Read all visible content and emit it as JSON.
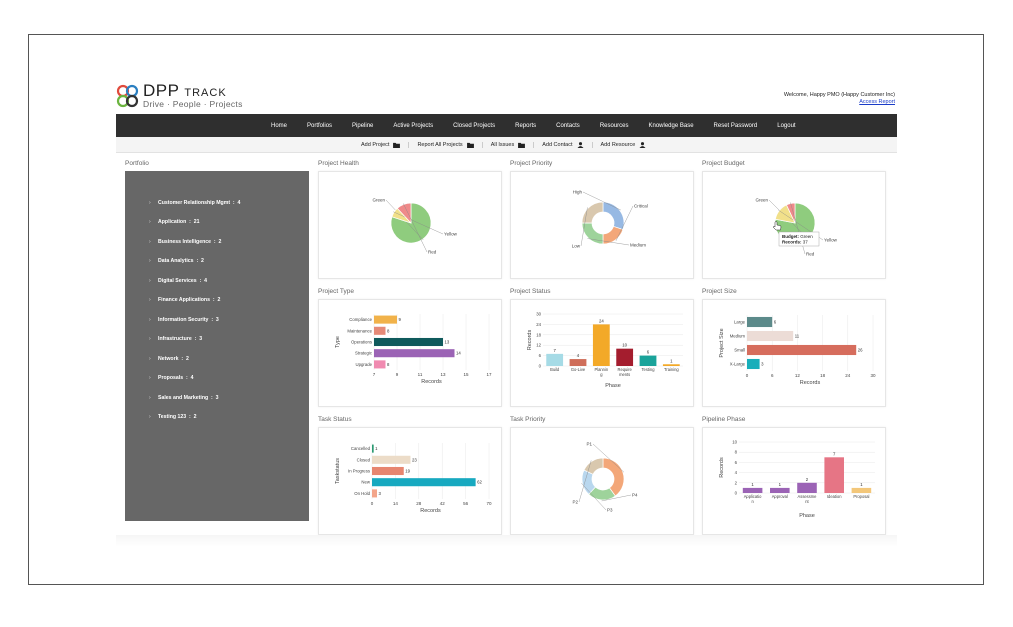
{
  "header": {
    "logo_main": "DPP",
    "logo_sub": "TRACK",
    "tagline": "Drive · People · Projects",
    "welcome": "Welcome, Happy PMO (Happy Customer Inc)",
    "access_report": "Access Report"
  },
  "nav": [
    "Home",
    "Portfolios",
    "Pipeline",
    "Active Projects",
    "Closed Projects",
    "Reports",
    "Contacts",
    "Resources",
    "Knowledge Base",
    "Reset Password",
    "Logout"
  ],
  "actions": [
    {
      "label": "Add Project",
      "icon": "folder-icon"
    },
    {
      "label": "Report All Projects",
      "icon": "folder-icon"
    },
    {
      "label": "All Issues",
      "icon": "folder-icon"
    },
    {
      "label": "Add Contact",
      "icon": "person-icon"
    },
    {
      "label": "Add Resource",
      "icon": "person-icon"
    }
  ],
  "portfolio": {
    "title": "Portfolio",
    "items": [
      {
        "label": "Customer Relationship Mgmt",
        "count": "4"
      },
      {
        "label": "Application",
        "count": "21"
      },
      {
        "label": "Business Intelligence",
        "count": "2"
      },
      {
        "label": "Data Analytics",
        "count": "2"
      },
      {
        "label": "Digital Services",
        "count": "4"
      },
      {
        "label": "Finance Applications",
        "count": "2"
      },
      {
        "label": "Information Security",
        "count": "3"
      },
      {
        "label": "Infrastructure",
        "count": "3"
      },
      {
        "label": "Network",
        "count": "2"
      },
      {
        "label": "Proposals",
        "count": "4"
      },
      {
        "label": "Sales and Marketing",
        "count": "3"
      },
      {
        "label": "Testing 123",
        "count": "2"
      }
    ]
  },
  "panels": {
    "project_health": "Project Health",
    "project_priority": "Project Priority",
    "project_budget": "Project Budget",
    "project_type": "Project Type",
    "project_status": "Project Status",
    "project_size": "Project Size",
    "task_status": "Task Status",
    "task_priority": "Task Priority",
    "pipeline_phase": "Pipeline Phase"
  },
  "colors": {
    "green": "#8fcc7e",
    "yellow": "#f1e08a",
    "red": "#ef8a8a",
    "blue": "#97b9e3",
    "orange": "#f3a779",
    "beige": "#d9c8ae",
    "teal_green": "#9ed39b",
    "nav_bg": "#2f2f2f",
    "sidebar_bg": "#676767"
  },
  "chart_data": [
    {
      "id": "project_health",
      "type": "pie",
      "labels": [
        "Green",
        "Yellow",
        "Red"
      ],
      "values": [
        80,
        8,
        12
      ],
      "colors": [
        "#8fcc7e",
        "#f1e08a",
        "#ef8a8a"
      ]
    },
    {
      "id": "project_priority",
      "type": "pie",
      "labels": [
        "High",
        "Critical",
        "Medium",
        "Low"
      ],
      "values": [
        30,
        20,
        25,
        25
      ],
      "colors": [
        "#97b9e3",
        "#f3a779",
        "#9ed39b",
        "#d9c8ae"
      ]
    },
    {
      "id": "project_budget",
      "type": "pie",
      "labels": [
        "Green",
        "Yellow",
        "Red"
      ],
      "values": [
        78,
        15,
        7
      ],
      "colors": [
        "#8fcc7e",
        "#f1e08a",
        "#ef8a8a"
      ],
      "tooltip": {
        "budget_label": "Budget:",
        "budget_value": "Green",
        "records_label": "Records:",
        "records_value": "37"
      }
    },
    {
      "id": "project_type",
      "type": "bar",
      "orientation": "horizontal",
      "categories": [
        "Compliance",
        "Maintenance",
        "Operations",
        "Strategic",
        "Upgrade"
      ],
      "values": [
        9,
        8,
        13,
        14,
        8
      ],
      "colors": [
        "#f1b24a",
        "#e58a78",
        "#0f5a5c",
        "#9b63b5",
        "#f08ab0"
      ],
      "xlabel": "Records",
      "ylabel": "Type",
      "xticks": [
        7,
        9,
        11,
        13,
        15,
        17
      ],
      "xlim": [
        7,
        17
      ]
    },
    {
      "id": "project_status",
      "type": "bar",
      "orientation": "vertical",
      "categories": [
        "Build",
        "Go-Live",
        "Planning",
        "Requirements",
        "Testing",
        "Training"
      ],
      "tick_labels": [
        "Build",
        "Go-Live",
        "Plannin g",
        "Require ments",
        "Testing",
        "Training"
      ],
      "values": [
        7,
        4,
        24,
        10,
        6,
        1
      ],
      "colors": [
        "#a6dbe6",
        "#cf6e5a",
        "#f3a928",
        "#a41d2e",
        "#1aa39a",
        "#f3a928"
      ],
      "xlabel": "Phase",
      "ylabel": "Records",
      "yticks": [
        0,
        6,
        12,
        18,
        24,
        30
      ],
      "ylim": [
        0,
        30
      ]
    },
    {
      "id": "project_size",
      "type": "bar",
      "orientation": "horizontal",
      "categories": [
        "Large",
        "Medium",
        "Small",
        "X-Large"
      ],
      "values": [
        6,
        11,
        26,
        3
      ],
      "colors": [
        "#5c8a8a",
        "#ecdcd6",
        "#d66d5d",
        "#17aeba"
      ],
      "xlabel": "Records",
      "ylabel": "Project Size",
      "xticks": [
        0,
        6,
        12,
        18,
        24,
        30
      ],
      "xlim": [
        0,
        30
      ]
    },
    {
      "id": "task_status",
      "type": "bar",
      "orientation": "horizontal",
      "categories": [
        "Cancelled",
        "Closed",
        "In Progress",
        "New",
        "On Hold"
      ],
      "values": [
        1,
        23,
        19,
        62,
        3
      ],
      "colors": [
        "#2b9a72",
        "#ecdcc8",
        "#e7856f",
        "#17a9c0",
        "#f3a58a"
      ],
      "xlabel": "Records",
      "ylabel": "Taskstatus",
      "xticks": [
        0,
        14,
        28,
        42,
        56,
        70
      ],
      "xlim": [
        0,
        70
      ]
    },
    {
      "id": "task_priority",
      "type": "pie",
      "labels": [
        "P1",
        "P4",
        "P3",
        "P2"
      ],
      "values": [
        40,
        22,
        20,
        18
      ],
      "colors": [
        "#f3a779",
        "#9ed39b",
        "#b9d7ee",
        "#d9c8ae"
      ]
    },
    {
      "id": "pipeline_phase",
      "type": "bar",
      "orientation": "vertical",
      "categories": [
        "Application",
        "Approval",
        "Assessment",
        "Ideation",
        "Proposal"
      ],
      "tick_labels": [
        "Applicatio n",
        "Approval",
        "Assessme nt",
        "Ideation",
        "Proposal"
      ],
      "values": [
        1,
        1,
        2,
        7,
        1
      ],
      "colors": [
        "#9b63b5",
        "#9b63b5",
        "#9b63b5",
        "#e67585",
        "#f3c77a"
      ],
      "xlabel": "Phase",
      "ylabel": "Records",
      "yticks": [
        0,
        2,
        4,
        6,
        8,
        10
      ],
      "ylim": [
        0,
        10
      ]
    }
  ]
}
